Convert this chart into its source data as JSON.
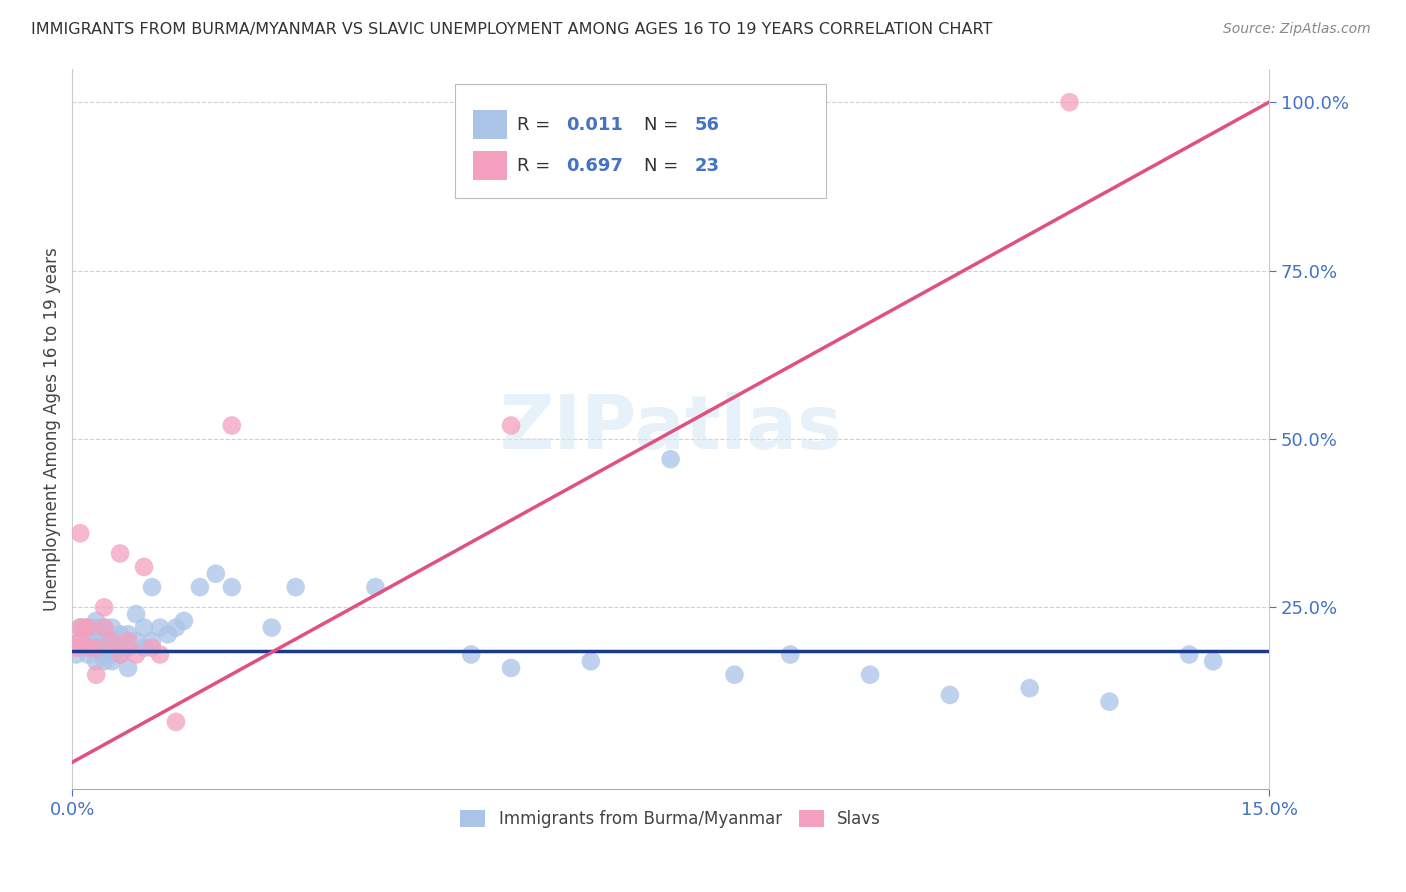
{
  "title": "IMMIGRANTS FROM BURMA/MYANMAR VS SLAVIC UNEMPLOYMENT AMONG AGES 16 TO 19 YEARS CORRELATION CHART",
  "source": "Source: ZipAtlas.com",
  "ylabel_label": "Unemployment Among Ages 16 to 19 years",
  "blue_color": "#aac4e8",
  "pink_color": "#f4a0be",
  "blue_line_color": "#1a3a8c",
  "pink_line_color": "#e05080",
  "right_axis_color": "#4472c4",
  "watermark": "ZIPatlas",
  "xlim": [
    0.0,
    0.15
  ],
  "ylim": [
    -0.02,
    1.05
  ],
  "blue_scatter_x": [
    0.0005,
    0.001,
    0.001,
    0.0015,
    0.002,
    0.002,
    0.002,
    0.0025,
    0.003,
    0.003,
    0.003,
    0.003,
    0.003,
    0.004,
    0.004,
    0.004,
    0.004,
    0.004,
    0.005,
    0.005,
    0.005,
    0.005,
    0.006,
    0.006,
    0.006,
    0.007,
    0.007,
    0.007,
    0.008,
    0.008,
    0.009,
    0.009,
    0.01,
    0.01,
    0.011,
    0.012,
    0.013,
    0.014,
    0.016,
    0.018,
    0.02,
    0.025,
    0.028,
    0.038,
    0.05,
    0.055,
    0.065,
    0.075,
    0.083,
    0.09,
    0.1,
    0.11,
    0.12,
    0.13,
    0.14,
    0.143
  ],
  "blue_scatter_y": [
    0.18,
    0.2,
    0.22,
    0.19,
    0.18,
    0.2,
    0.22,
    0.19,
    0.17,
    0.19,
    0.2,
    0.22,
    0.23,
    0.17,
    0.18,
    0.19,
    0.2,
    0.22,
    0.17,
    0.18,
    0.2,
    0.22,
    0.18,
    0.19,
    0.21,
    0.16,
    0.19,
    0.21,
    0.2,
    0.24,
    0.19,
    0.22,
    0.2,
    0.28,
    0.22,
    0.21,
    0.22,
    0.23,
    0.28,
    0.3,
    0.28,
    0.22,
    0.28,
    0.28,
    0.18,
    0.16,
    0.17,
    0.47,
    0.15,
    0.18,
    0.15,
    0.12,
    0.13,
    0.11,
    0.18,
    0.17
  ],
  "pink_scatter_x": [
    0.0005,
    0.001,
    0.001,
    0.001,
    0.0015,
    0.002,
    0.002,
    0.003,
    0.003,
    0.004,
    0.004,
    0.005,
    0.006,
    0.006,
    0.007,
    0.008,
    0.009,
    0.01,
    0.011,
    0.013,
    0.02,
    0.055,
    0.125
  ],
  "pink_scatter_y": [
    0.19,
    0.2,
    0.22,
    0.36,
    0.22,
    0.19,
    0.22,
    0.19,
    0.15,
    0.25,
    0.22,
    0.2,
    0.18,
    0.33,
    0.2,
    0.18,
    0.31,
    0.19,
    0.18,
    0.08,
    0.52,
    0.52,
    1.0
  ],
  "blue_trend_x": [
    0.0,
    0.15
  ],
  "blue_trend_y": [
    0.185,
    0.185
  ],
  "pink_trend_x": [
    0.0,
    0.15
  ],
  "pink_trend_y": [
    0.02,
    1.0
  ]
}
